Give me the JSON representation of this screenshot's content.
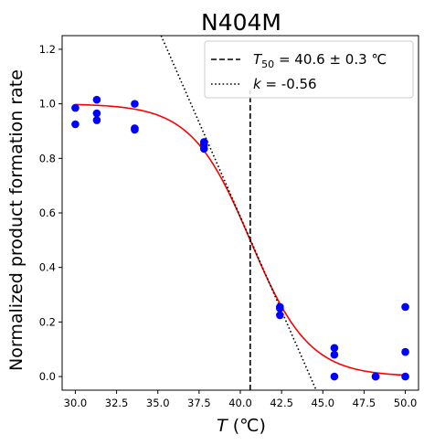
{
  "chart_data": {
    "type": "scatter",
    "title": "N404M",
    "xlabel_symbol": "T",
    "xlabel_unit": "(℃)",
    "ylabel": "Normalized product formation rate",
    "xlim": [
      29.2,
      50.8
    ],
    "ylim": [
      -0.05,
      1.25
    ],
    "xticks": [
      30.0,
      32.5,
      35.0,
      37.5,
      40.0,
      42.5,
      45.0,
      47.5,
      50.0
    ],
    "xtick_labels": [
      "30.0",
      "32.5",
      "35.0",
      "37.5",
      "40.0",
      "42.5",
      "45.0",
      "47.5",
      "50.0"
    ],
    "yticks": [
      0.0,
      0.2,
      0.4,
      0.6,
      0.8,
      1.0,
      1.2
    ],
    "ytick_labels": [
      "0.0",
      "0.2",
      "0.4",
      "0.6",
      "0.8",
      "1.0",
      "1.2"
    ],
    "grid": false,
    "legend_position": "top-right",
    "points": [
      {
        "x": 30.0,
        "y": 0.985
      },
      {
        "x": 30.0,
        "y": 0.925
      },
      {
        "x": 31.3,
        "y": 1.015
      },
      {
        "x": 31.3,
        "y": 0.965
      },
      {
        "x": 31.3,
        "y": 0.94
      },
      {
        "x": 33.6,
        "y": 1.0
      },
      {
        "x": 33.6,
        "y": 0.91
      },
      {
        "x": 33.6,
        "y": 0.905
      },
      {
        "x": 37.8,
        "y": 0.86
      },
      {
        "x": 37.8,
        "y": 0.85
      },
      {
        "x": 37.8,
        "y": 0.835
      },
      {
        "x": 42.4,
        "y": 0.255
      },
      {
        "x": 42.4,
        "y": 0.25
      },
      {
        "x": 42.4,
        "y": 0.225
      },
      {
        "x": 45.7,
        "y": 0.105
      },
      {
        "x": 45.7,
        "y": 0.08
      },
      {
        "x": 45.7,
        "y": 0.0
      },
      {
        "x": 48.2,
        "y": 0.0
      },
      {
        "x": 48.2,
        "y": 0.0
      },
      {
        "x": 50.0,
        "y": 0.255
      },
      {
        "x": 50.0,
        "y": 0.09
      },
      {
        "x": 50.0,
        "y": 0.0
      }
    ],
    "fit": {
      "T50": 40.6,
      "k": -0.56,
      "color": "#ff0000",
      "x_range": [
        30.0,
        50.0
      ]
    },
    "t50_line": {
      "x": 40.6,
      "y_range": [
        -0.05,
        1.05
      ],
      "style": "dashed",
      "color": "#000000"
    },
    "slope_line": {
      "points": [
        [
          35.2,
          1.25
        ],
        [
          44.6,
          -0.05
        ]
      ],
      "style": "dotted",
      "color": "#000000"
    },
    "legend": [
      {
        "style": "dashed",
        "label_prefix": "T",
        "label_sub": "50",
        "label_rest": " = 40.6 ± 0.3 ℃"
      },
      {
        "style": "dotted",
        "label_prefix": "k",
        "label_sub": "",
        "label_rest": " = -0.56"
      }
    ],
    "point_color": "#0000ff"
  }
}
